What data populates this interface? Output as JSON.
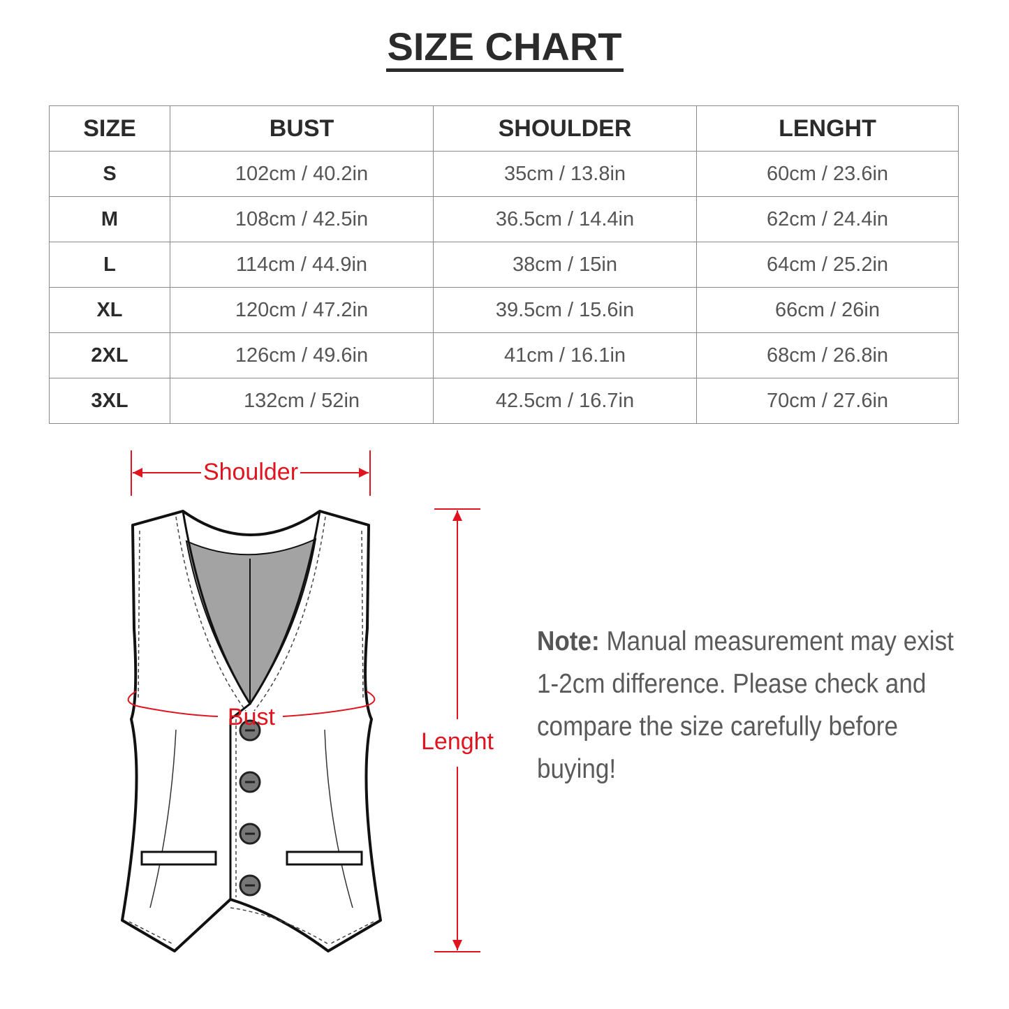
{
  "title": "SIZE CHART",
  "table": {
    "headers": [
      "SIZE",
      "BUST",
      "SHOULDER",
      "LENGHT"
    ],
    "rows": [
      [
        "S",
        "102cm / 40.2in",
        "35cm / 13.8in",
        "60cm / 23.6in"
      ],
      [
        "M",
        "108cm / 42.5in",
        "36.5cm / 14.4in",
        "62cm / 24.4in"
      ],
      [
        "L",
        "114cm / 44.9in",
        "38cm / 15in",
        "64cm / 25.2in"
      ],
      [
        "XL",
        "120cm / 47.2in",
        "39.5cm / 15.6in",
        "66cm / 26in"
      ],
      [
        "2XL",
        "126cm / 49.6in",
        "41cm / 16.1in",
        "68cm / 26.8in"
      ],
      [
        "3XL",
        "132cm / 52in",
        "42.5cm / 16.7in",
        "70cm / 27.6in"
      ]
    ]
  },
  "diagram": {
    "shoulder_label": "Shoulder",
    "bust_label": "Bust",
    "length_label": "Lenght",
    "measure_color": "#e0141e",
    "lining_color": "#a3a3a3"
  },
  "note": {
    "label": "Note:",
    "text": " Manual measurement may exist 1-2cm difference. Please check and compare the size carefully before buying!"
  }
}
